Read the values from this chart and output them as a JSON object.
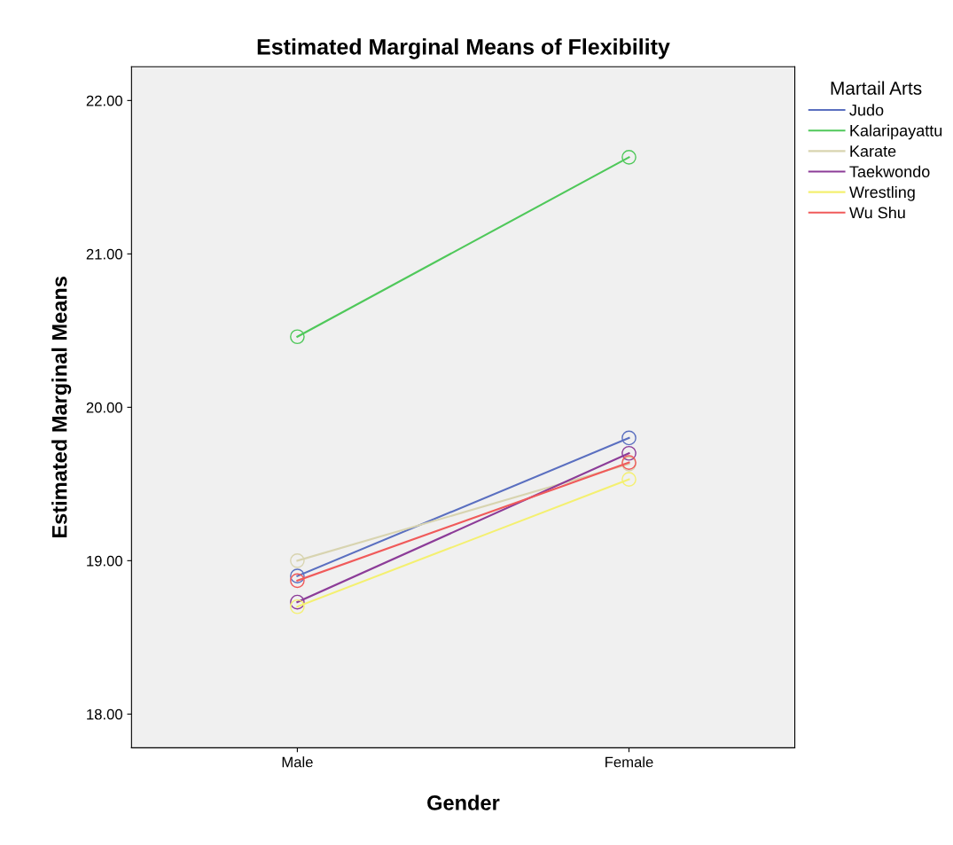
{
  "chart_data": {
    "type": "line",
    "title": "Estimated Marginal Means of Flexibility",
    "xlabel": "Gender",
    "ylabel": "Estimated Marginal Means",
    "legend_title": "Martail Arts",
    "categories": [
      "Male",
      "Female"
    ],
    "series": [
      {
        "name": "Judo",
        "color": "#5a6fc0",
        "values": [
          18.9,
          19.8
        ]
      },
      {
        "name": "Kalaripayattu",
        "color": "#4fc85a",
        "values": [
          20.46,
          21.63
        ]
      },
      {
        "name": "Karate",
        "color": "#d8d4b0",
        "values": [
          19.0,
          19.63
        ]
      },
      {
        "name": "Taekwondo",
        "color": "#8c3c98",
        "values": [
          18.73,
          19.7
        ]
      },
      {
        "name": "Wrestling",
        "color": "#f4f070",
        "values": [
          18.7,
          19.53
        ]
      },
      {
        "name": "Wu Shu",
        "color": "#f05a5a",
        "values": [
          18.87,
          19.64
        ]
      }
    ],
    "ylim": [
      17.78,
      22.22
    ],
    "yticks": [
      {
        "value": 18,
        "label": "18.00"
      },
      {
        "value": 19,
        "label": "19.00"
      },
      {
        "value": 20,
        "label": "20.00"
      },
      {
        "value": 21,
        "label": "21.00"
      },
      {
        "value": 22,
        "label": "22.00"
      }
    ],
    "grid": false,
    "legend": "top right",
    "marker": "circle",
    "line_style": "solid"
  }
}
